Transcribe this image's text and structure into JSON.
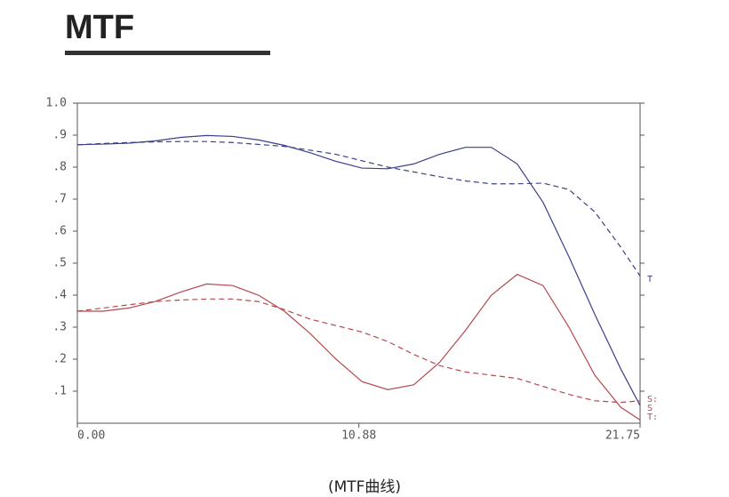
{
  "header": {
    "title": "MTF"
  },
  "chart_data": {
    "type": "line",
    "caption": "(MTF曲线)",
    "x": [
      0,
      1,
      2,
      3,
      4,
      5,
      6,
      7,
      8,
      9,
      10,
      11,
      12,
      13,
      14,
      15,
      16,
      17,
      18,
      19,
      20,
      21,
      21.75
    ],
    "series": [
      {
        "color": "#3a3f8a",
        "dash": false,
        "values": [
          0.87,
          0.872,
          0.875,
          0.882,
          0.893,
          0.899,
          0.896,
          0.885,
          0.868,
          0.845,
          0.818,
          0.797,
          0.795,
          0.81,
          0.84,
          0.862,
          0.862,
          0.81,
          0.69,
          0.52,
          0.34,
          0.17,
          0.055
        ]
      },
      {
        "color": "#3a3f8a",
        "dash": true,
        "values": [
          0.87,
          0.874,
          0.877,
          0.879,
          0.88,
          0.88,
          0.877,
          0.871,
          0.865,
          0.853,
          0.84,
          0.82,
          0.8,
          0.785,
          0.77,
          0.757,
          0.748,
          0.748,
          0.75,
          0.73,
          0.66,
          0.55,
          0.46
        ]
      },
      {
        "color": "#b5484f",
        "dash": false,
        "values": [
          0.35,
          0.35,
          0.36,
          0.38,
          0.41,
          0.435,
          0.43,
          0.4,
          0.35,
          0.28,
          0.2,
          0.13,
          0.105,
          0.12,
          0.19,
          0.29,
          0.4,
          0.465,
          0.43,
          0.3,
          0.15,
          0.05,
          0.01
        ]
      },
      {
        "color": "#b5484f",
        "dash": true,
        "values": [
          0.35,
          0.36,
          0.37,
          0.38,
          0.385,
          0.388,
          0.388,
          0.38,
          0.355,
          0.325,
          0.305,
          0.285,
          0.255,
          0.215,
          0.18,
          0.16,
          0.15,
          0.14,
          0.115,
          0.09,
          0.07,
          0.065,
          0.07
        ]
      }
    ],
    "annotations": [
      {
        "text": "T",
        "color": "#3a3f8a"
      },
      {
        "text": "S:",
        "color": "#b5484f"
      },
      {
        "text": "S",
        "color": "#b5484f"
      },
      {
        "text": "T:",
        "color": "#b5484f"
      }
    ],
    "xlim": [
      0,
      21.75
    ],
    "xticks": [
      {
        "value": 0,
        "label": "0.00"
      },
      10.88,
      21.75
    ],
    "ylim": [
      0,
      1
    ],
    "yticks": [
      {
        "value": 0.1,
        "label": ".1"
      },
      {
        "value": 0.2,
        "label": ".2"
      },
      {
        "value": 0.3,
        "label": ".3"
      },
      {
        "value": 0.4,
        "label": ".4"
      },
      {
        "value": 0.5,
        "label": ".5"
      },
      {
        "value": 0.6,
        "label": ".6"
      },
      {
        "value": 0.7,
        "label": ".7"
      },
      {
        "value": 0.8,
        "label": ".8"
      },
      {
        "value": 0.9,
        "label": ".9"
      },
      {
        "value": 1,
        "label": "1.0"
      }
    ]
  }
}
